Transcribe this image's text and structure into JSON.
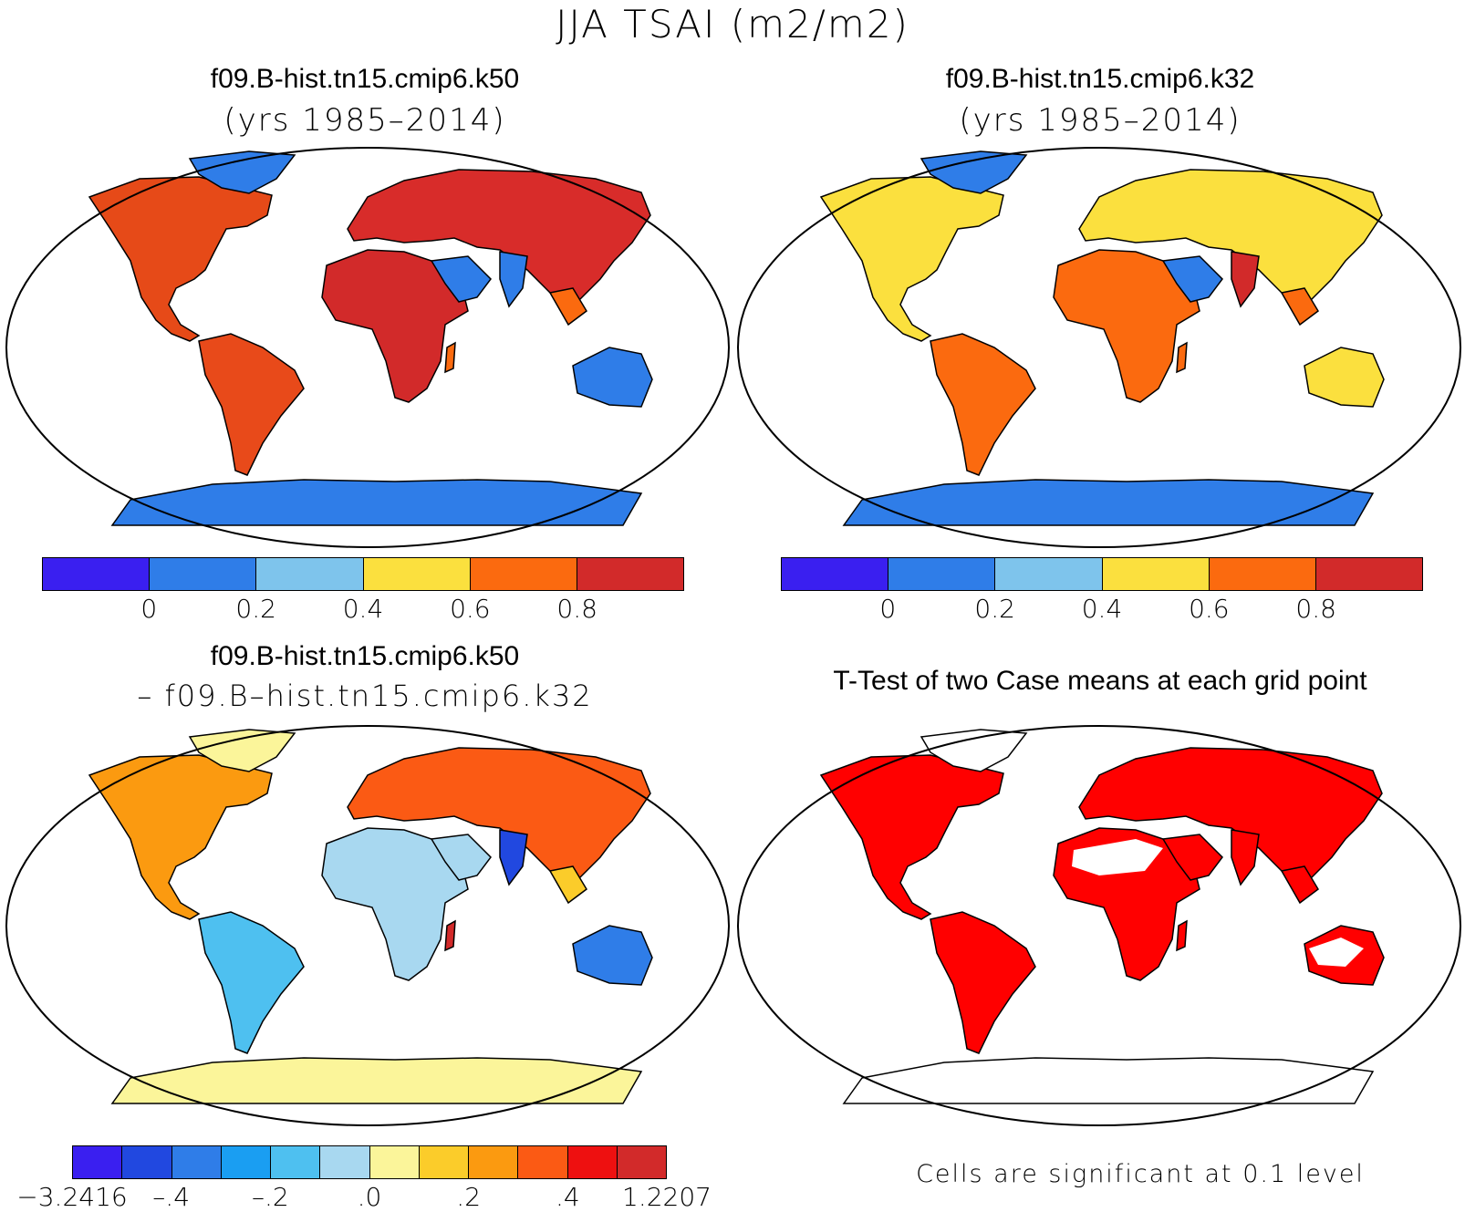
{
  "title": "JJA TSAI (m2/m2)",
  "panels": [
    {
      "case": "f09.B-hist.tn15.cmip6.k50",
      "years": "(yrs 1985–2014)"
    },
    {
      "case": "f09.B-hist.tn15.cmip6.k32",
      "years": "(yrs 1985–2014)"
    },
    {
      "case": "f09.B-hist.tn15.cmip6.k50",
      "subtract": "– f09.B–hist.tn15.cmip6.k32"
    },
    {
      "title": "T-Test of two Case means at each grid point",
      "note": "Cells are significant at 0.1 level"
    }
  ],
  "colorbars": {
    "mean": {
      "colors": [
        "#3a1ff0",
        "#2f7de8",
        "#7ec4ec",
        "#fbe03e",
        "#fb6a0f",
        "#d22a2a"
      ],
      "labels": [
        "0",
        "0.2",
        "0.4",
        "0.6",
        "0.8"
      ]
    },
    "diff": {
      "colors": [
        "#3a1ff0",
        "#2148e0",
        "#2f7de8",
        "#1a9ef2",
        "#4ec0f0",
        "#a8d8f0",
        "#fbf59a",
        "#fbcc2a",
        "#fb9a10",
        "#fb5a14",
        "#ee1010",
        "#d22a2a"
      ],
      "labels": [
        "−3.2416",
        "–.4",
        "–.2",
        ".0",
        ".2",
        ".4",
        "1.2207"
      ]
    },
    "ttest_color": "#ff0000"
  }
}
